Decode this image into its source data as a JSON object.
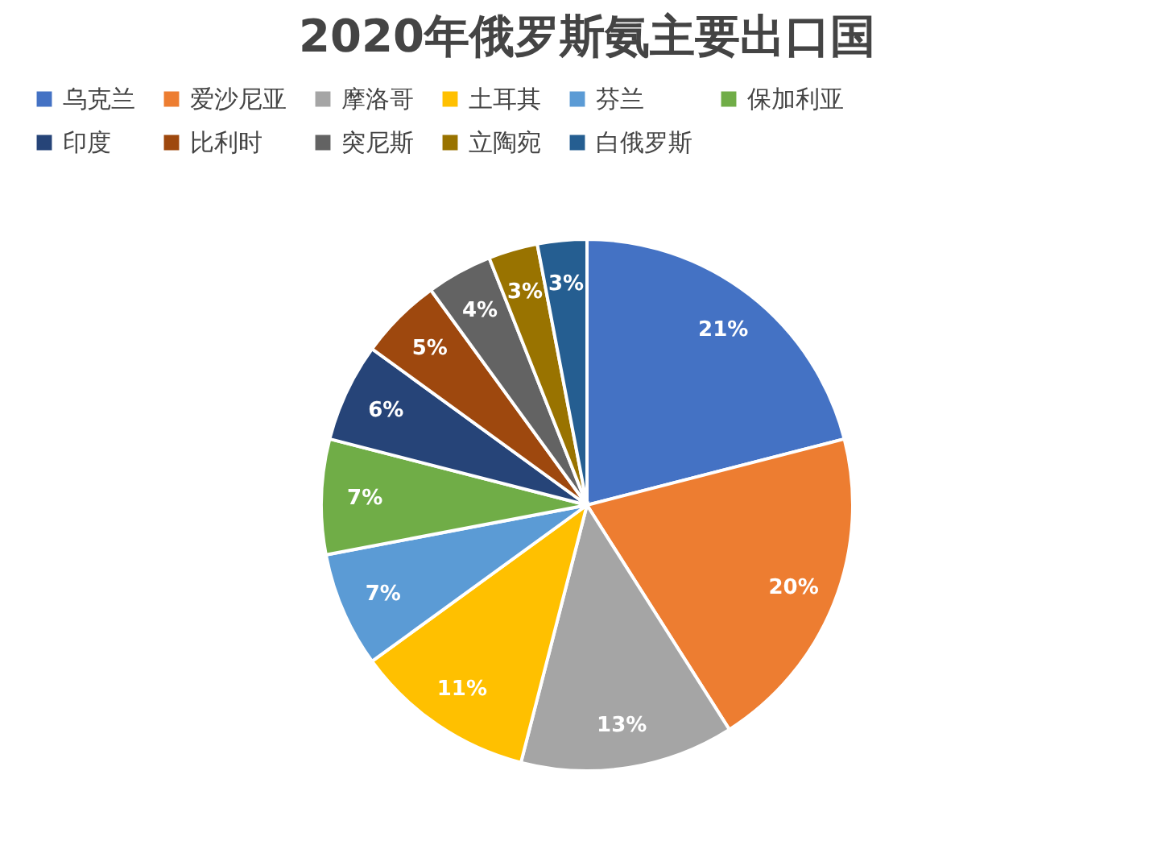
{
  "chart_data": {
    "type": "pie",
    "title": "2020年俄罗斯氨主要出口国",
    "categories": [
      "乌克兰",
      "爱沙尼亚",
      "摩洛哥",
      "土耳其",
      "芬兰",
      "保加利亚",
      "印度",
      "比利时",
      "突尼斯",
      "立陶宛",
      "白俄罗斯"
    ],
    "values": [
      21,
      20,
      13,
      11,
      7,
      7,
      6,
      5,
      4,
      3,
      3
    ],
    "value_labels": [
      "21%",
      "20%",
      "13%",
      "11%",
      "7%",
      "7%",
      "6%",
      "5%",
      "4%",
      "3%",
      "3%"
    ],
    "colors": [
      "#4472c4",
      "#ed7d31",
      "#a5a5a5",
      "#ffc000",
      "#5b9bd5",
      "#70ad47",
      "#264478",
      "#9e480e",
      "#636363",
      "#997300",
      "#255e91"
    ],
    "legend": "top"
  }
}
